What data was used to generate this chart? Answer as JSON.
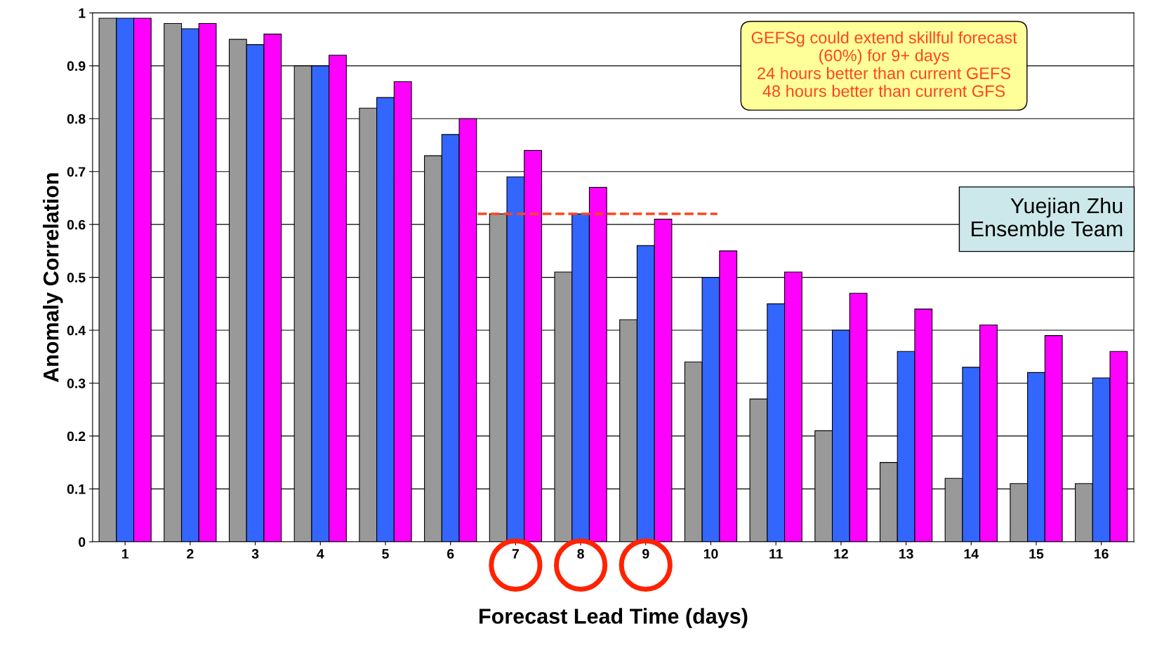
{
  "chart_data": {
    "type": "bar",
    "xlabel": "Forecast Lead Time (days)",
    "ylabel": "Anomaly Correlation",
    "categories": [
      "1",
      "2",
      "3",
      "4",
      "5",
      "6",
      "7",
      "8",
      "9",
      "10",
      "11",
      "12",
      "13",
      "14",
      "15",
      "16"
    ],
    "series": [
      {
        "color": "#999999",
        "values": [
          0.99,
          0.98,
          0.95,
          0.9,
          0.82,
          0.73,
          0.62,
          0.51,
          0.42,
          0.34,
          0.27,
          0.21,
          0.15,
          0.12,
          0.11,
          0.11
        ]
      },
      {
        "color": "#3366ff",
        "values": [
          0.99,
          0.97,
          0.94,
          0.9,
          0.84,
          0.77,
          0.69,
          0.62,
          0.56,
          0.5,
          0.45,
          0.4,
          0.36,
          0.33,
          0.32,
          0.31
        ]
      },
      {
        "color": "#ff00ff",
        "values": [
          0.99,
          0.98,
          0.96,
          0.92,
          0.87,
          0.8,
          0.74,
          0.67,
          0.61,
          0.55,
          0.51,
          0.47,
          0.44,
          0.41,
          0.39,
          0.36
        ]
      }
    ],
    "ylim": [
      0,
      1
    ],
    "yticks": [
      0,
      0.1,
      0.2,
      0.3,
      0.4,
      0.5,
      0.6,
      0.7,
      0.8,
      0.9,
      1
    ],
    "grid": "y",
    "legend": false,
    "ref_lines": [
      {
        "axis": "y",
        "value": 0.62,
        "color": "#ff4422",
        "line_style": "dashed"
      }
    ],
    "annotations": [
      "GEFSg could extend skillful forecast\n(60%) for 9+ days\n24 hours better than current GEFS\n48 hours better than current GFS",
      "Yuejian Zhu\nEnsemble Team"
    ]
  }
}
